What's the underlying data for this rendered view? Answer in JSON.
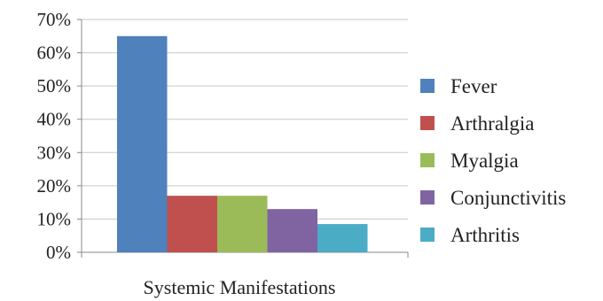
{
  "chart_data": {
    "type": "bar",
    "xlabel": "Systemic Manifestations",
    "ylabel": "",
    "ylim": [
      0,
      70
    ],
    "yticks": [
      "0%",
      "10%",
      "20%",
      "30%",
      "40%",
      "50%",
      "60%",
      "70%"
    ],
    "grid": true,
    "legend_position": "right",
    "series": [
      {
        "name": "Fever",
        "values": [
          65
        ],
        "color": "#4f81bd"
      },
      {
        "name": "Arthralgia",
        "values": [
          17
        ],
        "color": "#c0504d"
      },
      {
        "name": "Myalgia",
        "values": [
          17
        ],
        "color": "#9bbb59"
      },
      {
        "name": "Conjunctivitis",
        "values": [
          13
        ],
        "color": "#8064a2"
      },
      {
        "name": "Arthritis",
        "values": [
          8.5
        ],
        "color": "#4bacc6"
      }
    ]
  }
}
